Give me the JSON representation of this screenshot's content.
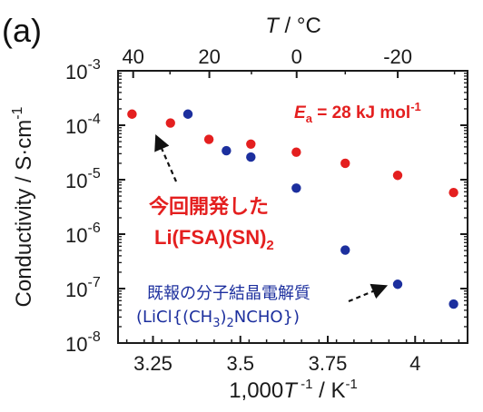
{
  "panel_label": "(a)",
  "chart_data": {
    "type": "scatter",
    "title": "",
    "xlabel": "1,000T⁻¹ / K⁻¹",
    "ylabel": "Conductivity / S·cm⁻¹",
    "top_xlabel": "T / °C",
    "xlim": [
      3.15,
      4.15
    ],
    "ylim_log10": [
      -8,
      -3
    ],
    "yscale": "log",
    "grid": false,
    "x_ticks": [
      3.25,
      3.5,
      3.75,
      4
    ],
    "x_tick_labels": [
      "3.25",
      "3.5",
      "3.75",
      "4"
    ],
    "top_ticks_celsius": [
      40,
      20,
      0,
      -20
    ],
    "top_tick_labels": [
      "40",
      "20",
      "0",
      "-20"
    ],
    "y_tick_labels": [
      {
        "base": "10",
        "exp": "-8",
        "log": -8
      },
      {
        "base": "10",
        "exp": "-7",
        "log": -7
      },
      {
        "base": "10",
        "exp": "-6",
        "log": -6
      },
      {
        "base": "10",
        "exp": "-5",
        "log": -5
      },
      {
        "base": "10",
        "exp": "-4",
        "log": -4
      },
      {
        "base": "10",
        "exp": "-3",
        "log": -3
      }
    ],
    "series": [
      {
        "name": "今回開発した Li(FSA)(SN)2",
        "color": "#e41f1f",
        "x": [
          3.19,
          3.3,
          3.41,
          3.53,
          3.66,
          3.8,
          3.95,
          4.11
        ],
        "y": [
          0.00016,
          0.00011,
          5.5e-05,
          4.5e-05,
          3.2e-05,
          2e-05,
          1.2e-05,
          5.8e-06
        ]
      },
      {
        "name": "既報の分子結晶電解質 (LiCl{(CH3)2NCHO})",
        "color": "#1c2f9e",
        "x": [
          3.35,
          3.46,
          3.53,
          3.66,
          3.8,
          3.95,
          4.11
        ],
        "y": [
          0.00016,
          3.4e-05,
          2.6e-05,
          7e-06,
          5.1e-07,
          1.2e-07,
          5.2e-08
        ]
      }
    ],
    "annotations": {
      "activation_energy": {
        "symbol": "E",
        "sub": "a",
        "text": " = 28 kJ mol",
        "sup": "-1"
      },
      "red_label_line1": "今回開発した",
      "red_label_line2": "Li(FSA)(SN)",
      "red_label_sub": "2",
      "blue_label_line1": "既報の分子結晶電解質",
      "blue_label_line2_a": "(LiCl{(CH",
      "blue_label_line2_sub": "3",
      "blue_label_line2_b": ")",
      "blue_label_line2_sub2": "2",
      "blue_label_line2_c": "NCHO})"
    }
  }
}
